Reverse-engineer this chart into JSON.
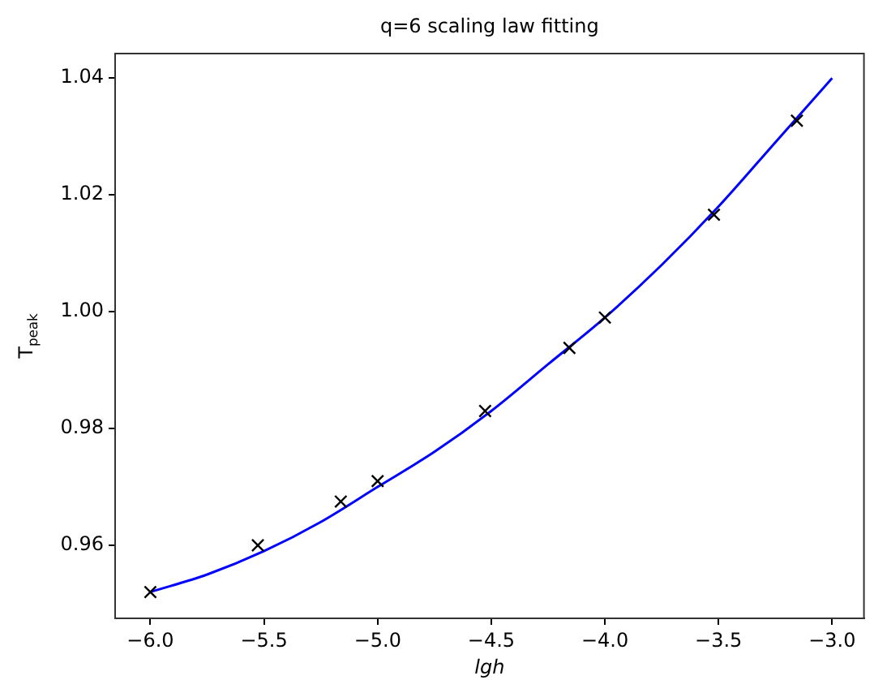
{
  "chart_data": {
    "type": "line",
    "title": "q=6 scaling law fitting",
    "xlabel": "lgh",
    "ylabel": "T$_{peak}$",
    "xlim": [
      -6.155,
      -2.86
    ],
    "ylim": [
      0.9475,
      1.0442
    ],
    "xticks": [
      {
        "value": -6,
        "label": "−6.0"
      },
      {
        "value": -5.5,
        "label": "−5.5"
      },
      {
        "value": -5,
        "label": "−5.0"
      },
      {
        "value": -4.5,
        "label": "−4.5"
      },
      {
        "value": -4,
        "label": "−4.0"
      },
      {
        "value": -3.5,
        "label": "−3.5"
      },
      {
        "value": -3,
        "label": "−3.0"
      }
    ],
    "yticks": [
      {
        "value": 0.96,
        "label": "0.96"
      },
      {
        "value": 0.98,
        "label": "0.98"
      },
      {
        "value": 1.0,
        "label": "1.00"
      },
      {
        "value": 1.02,
        "label": "1.02"
      },
      {
        "value": 1.04,
        "label": "1.04"
      }
    ],
    "grid": false,
    "legend": false,
    "series": [
      {
        "marker": "none",
        "color": "#0000ff",
        "x": [
          -6,
          -5.75,
          -5.5,
          -5.25,
          -5,
          -4.75,
          -4.5,
          -4.25,
          -4,
          -3.75,
          -3.5,
          -3.25,
          -3
        ],
        "values": [
          0.952,
          0.955,
          0.959,
          0.964,
          0.97,
          0.976,
          0.983,
          0.991,
          0.999,
          1.008,
          1.018,
          1.029,
          1.04
        ]
      },
      {
        "type": "scatter",
        "marker": "cross",
        "color": "#000000",
        "x": [
          -6,
          -5.527,
          -5.162,
          -5.0,
          -4.527,
          -4.156,
          -4.0,
          -3.52,
          -3.155
        ],
        "values": [
          0.952,
          0.96,
          0.9675,
          0.971,
          0.983,
          0.9938,
          0.999,
          1.0166,
          1.0327
        ]
      }
    ]
  }
}
